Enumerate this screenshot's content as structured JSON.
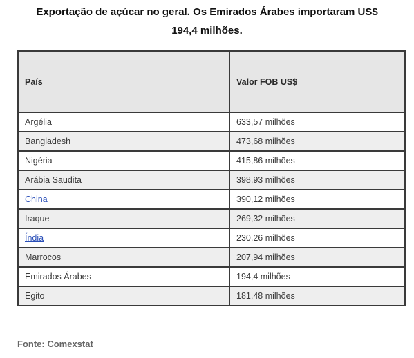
{
  "title": {
    "line1": "Exportação de açúcar no geral. Os Emirados Árabes importaram US$",
    "line2": "194,4 milhões."
  },
  "table": {
    "headers": [
      "País",
      "Valor FOB US$"
    ],
    "rows": [
      {
        "country": "Argélia",
        "value": "633,57 milhões",
        "link": false
      },
      {
        "country": "Bangladesh",
        "value": "473,68 milhões",
        "link": false
      },
      {
        "country": "Nigéria",
        "value": "415,86 milhões",
        "link": false
      },
      {
        "country": "Arábia Saudita",
        "value": "398,93 milhões",
        "link": false
      },
      {
        "country": "China",
        "value": "390,12 milhões",
        "link": true
      },
      {
        "country": "Iraque",
        "value": "269,32 milhões",
        "link": false
      },
      {
        "country": "Índia",
        "value": "230,26 milhões",
        "link": true
      },
      {
        "country": "Marrocos",
        "value": "207,94 milhões",
        "link": false
      },
      {
        "country": "Emirados Árabes",
        "value": "194,4 milhões",
        "link": false
      },
      {
        "country": "Egito",
        "value": "181,48 milhões",
        "link": false
      }
    ]
  },
  "source": "Fonte: Comexstat",
  "colors": {
    "header_bg": "#e6e6e6",
    "row_alt_bg": "#eeeeee",
    "border": "#3a3a3a",
    "link": "#2a4fb8"
  }
}
